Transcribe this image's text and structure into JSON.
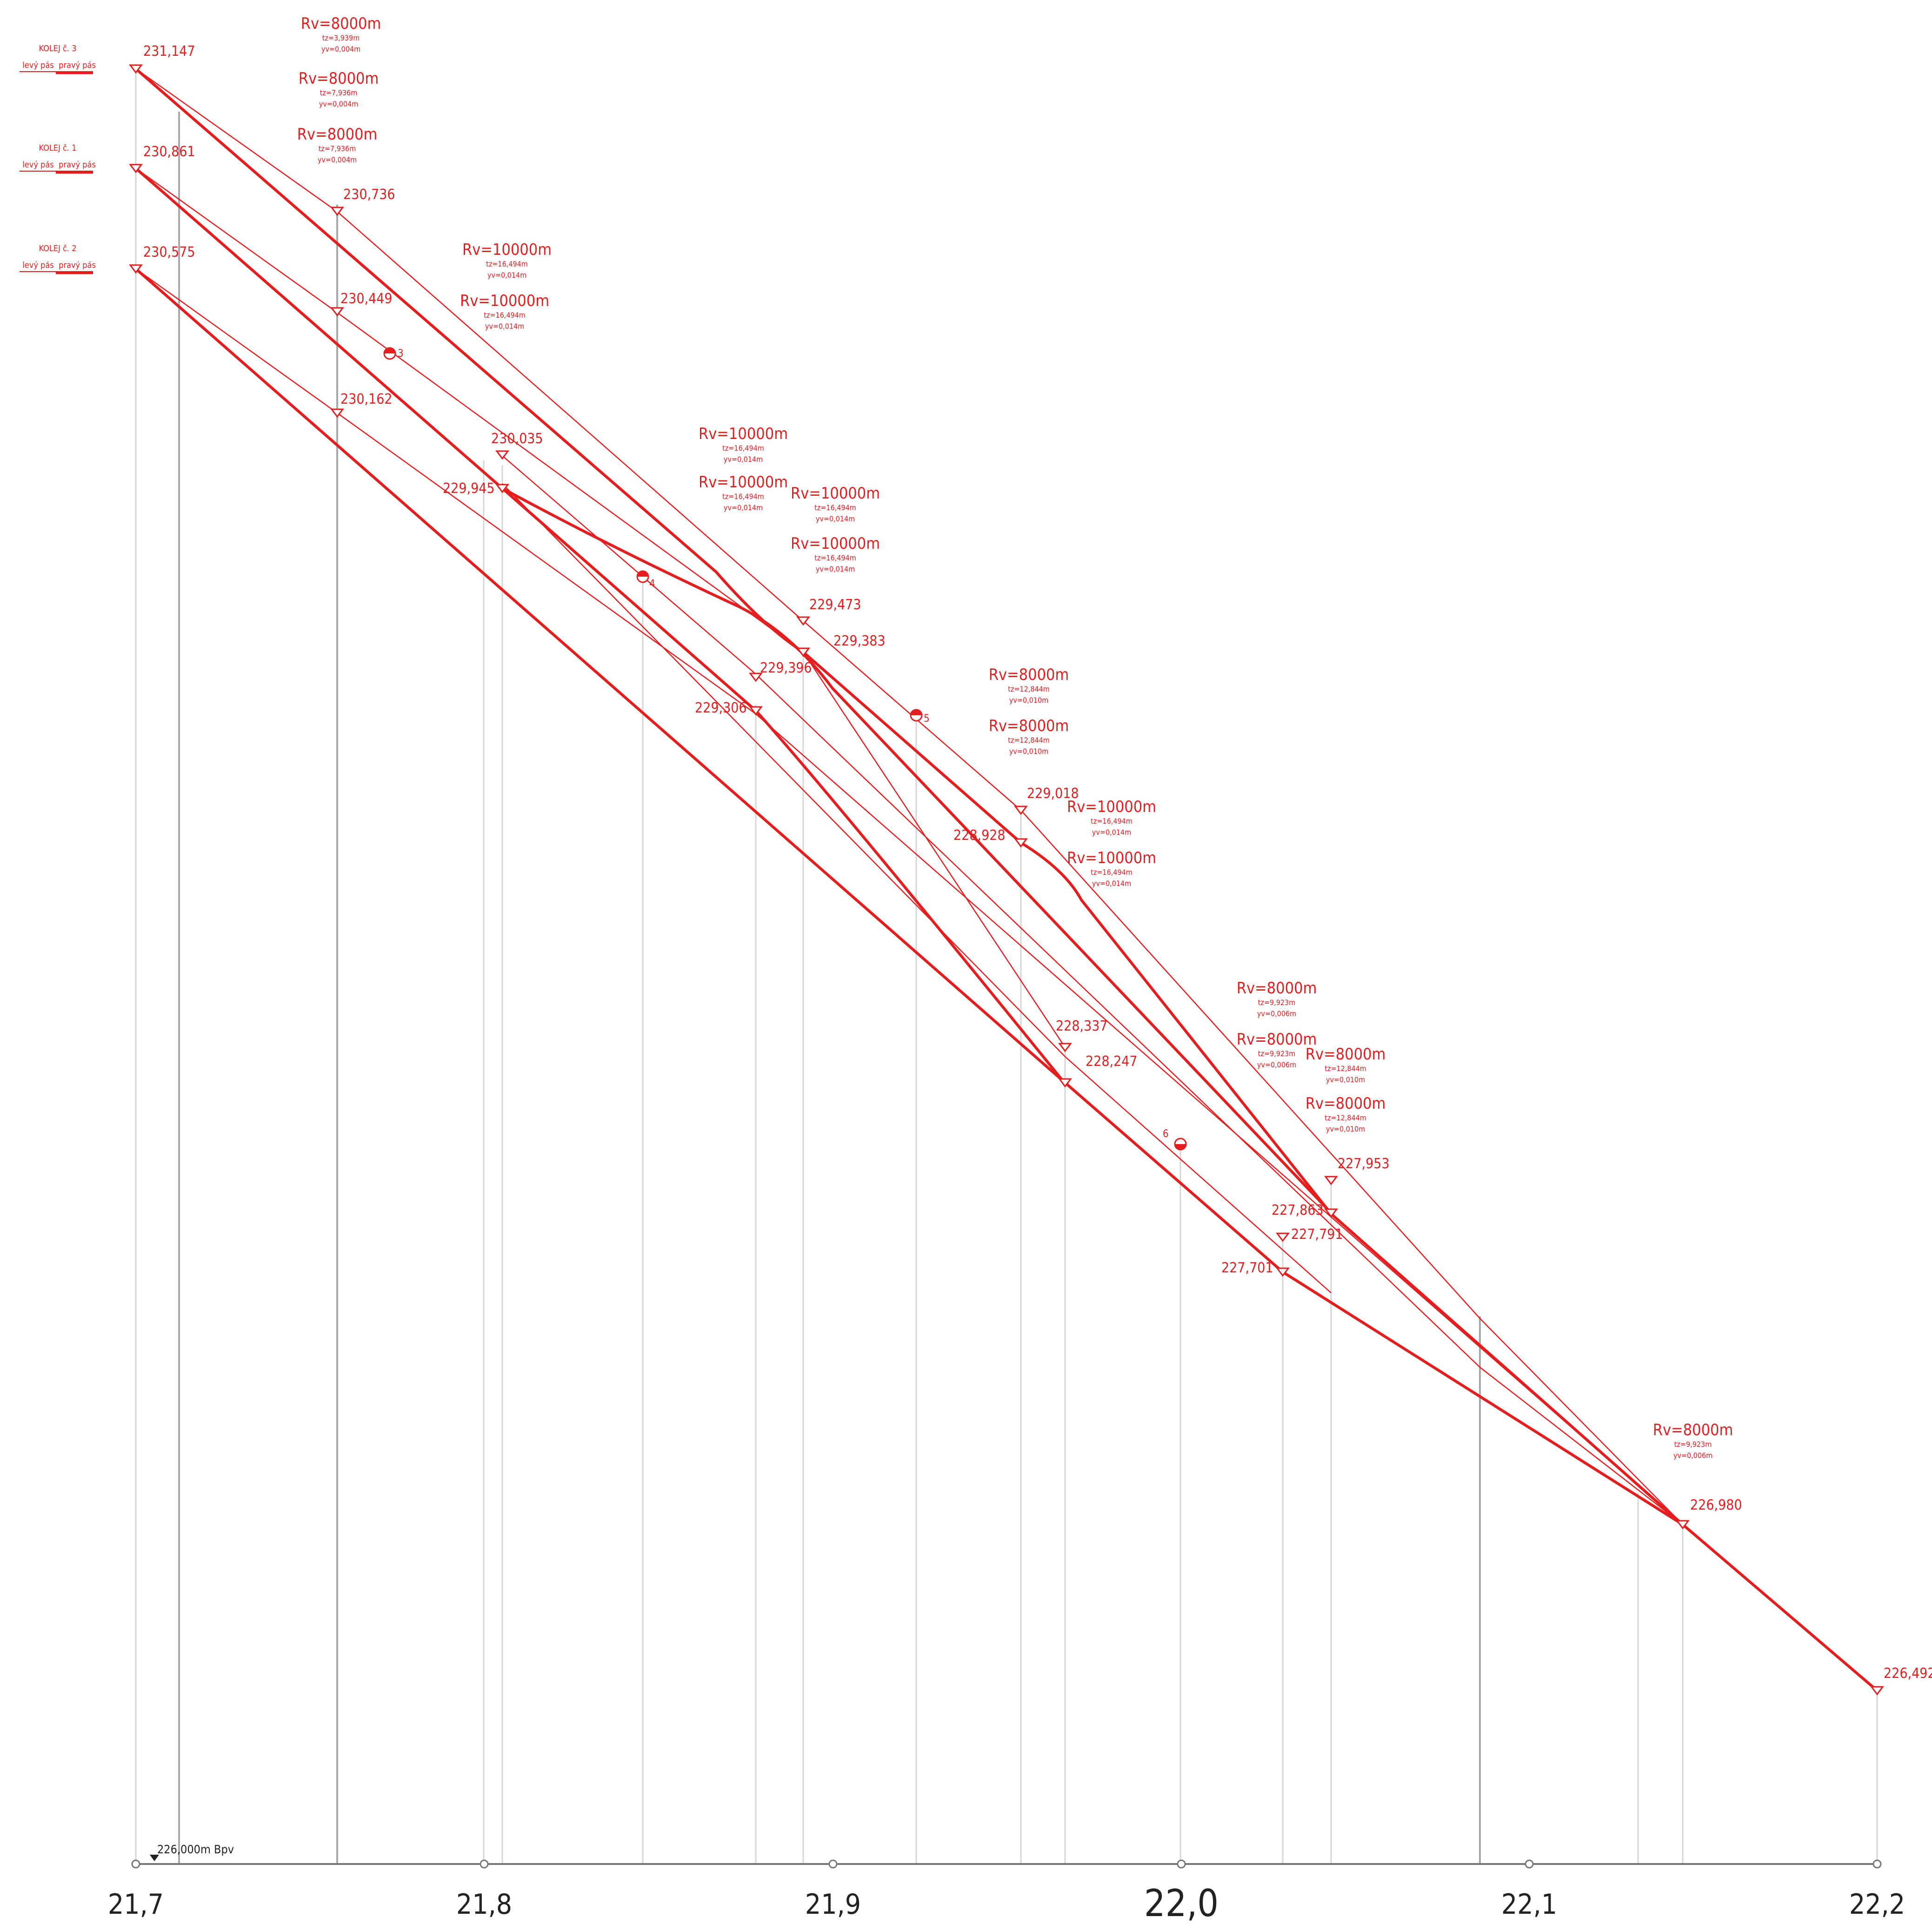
{
  "colors": {
    "profile": "#e41e1e",
    "grid": "#c8c8c8",
    "axis": "#777777",
    "text": "#222222"
  },
  "datum": "226,000m Bpv",
  "tracks": [
    {
      "name": "KOLEJ č. 3",
      "left": "levý pás",
      "right": "pravý pás",
      "start": "231,147"
    },
    {
      "name": "KOLEJ č. 1",
      "left": "levý pás",
      "right": "pravý pás",
      "start": "230,861"
    },
    {
      "name": "KOLEJ č. 2",
      "left": "levý pás",
      "right": "pravý pás",
      "start": "230,575"
    }
  ],
  "axis_ticks": [
    "21,7",
    "21,8",
    "21,9",
    "22,0",
    "22,1",
    "22,2"
  ],
  "elevation_labels": [
    "231,147",
    "230,861",
    "230,575",
    "230,736",
    "230,449",
    "230,162",
    "230,035",
    "229,945",
    "229,473",
    "229,383",
    "229,396",
    "229,306",
    "229,018",
    "228,928",
    "228,337",
    "228,247",
    "227,953",
    "227,863",
    "227,791",
    "227,701",
    "226,980",
    "226,492"
  ],
  "curves": [
    {
      "r": "Rv=8000m",
      "t": "tz=3,939m",
      "y": "yv=0,004m"
    },
    {
      "r": "Rv=8000m",
      "t": "tz=7,936m",
      "y": "yv=0,004m"
    },
    {
      "r": "Rv=8000m",
      "t": "tz=7,936m",
      "y": "yv=0,004m"
    },
    {
      "r": "Rv=10000m",
      "t": "tz=16,494m",
      "y": "yv=0,014m"
    },
    {
      "r": "Rv=10000m",
      "t": "tz=16,494m",
      "y": "yv=0,014m"
    },
    {
      "r": "Rv=10000m",
      "t": "tz=16,494m",
      "y": "yv=0,014m"
    },
    {
      "r": "Rv=10000m",
      "t": "tz=16,494m",
      "y": "yv=0,014m"
    },
    {
      "r": "Rv=10000m",
      "t": "tz=16,494m",
      "y": "yv=0,014m"
    },
    {
      "r": "Rv=10000m",
      "t": "tz=16,494m",
      "y": "yv=0,014m"
    },
    {
      "r": "Rv=8000m",
      "t": "tz=12,844m",
      "y": "yv=0,010m"
    },
    {
      "r": "Rv=8000m",
      "t": "tz=12,844m",
      "y": "yv=0,010m"
    },
    {
      "r": "Rv=10000m",
      "t": "tz=16,494m",
      "y": "yv=0,014m"
    },
    {
      "r": "Rv=10000m",
      "t": "tz=16,494m",
      "y": "yv=0,014m"
    },
    {
      "r": "Rv=8000m",
      "t": "tz=9,923m",
      "y": "yv=0,006m"
    },
    {
      "r": "Rv=8000m",
      "t": "tz=9,923m",
      "y": "yv=0,006m"
    },
    {
      "r": "Rv=8000m",
      "t": "tz=12,844m",
      "y": "yv=0,010m"
    },
    {
      "r": "Rv=8000m",
      "t": "tz=12,844m",
      "y": "yv=0,010m"
    },
    {
      "r": "Rv=8000m",
      "t": "tz=9,923m",
      "y": "yv=0,006m"
    }
  ],
  "markers": [
    "3",
    "4",
    "5",
    "6"
  ]
}
